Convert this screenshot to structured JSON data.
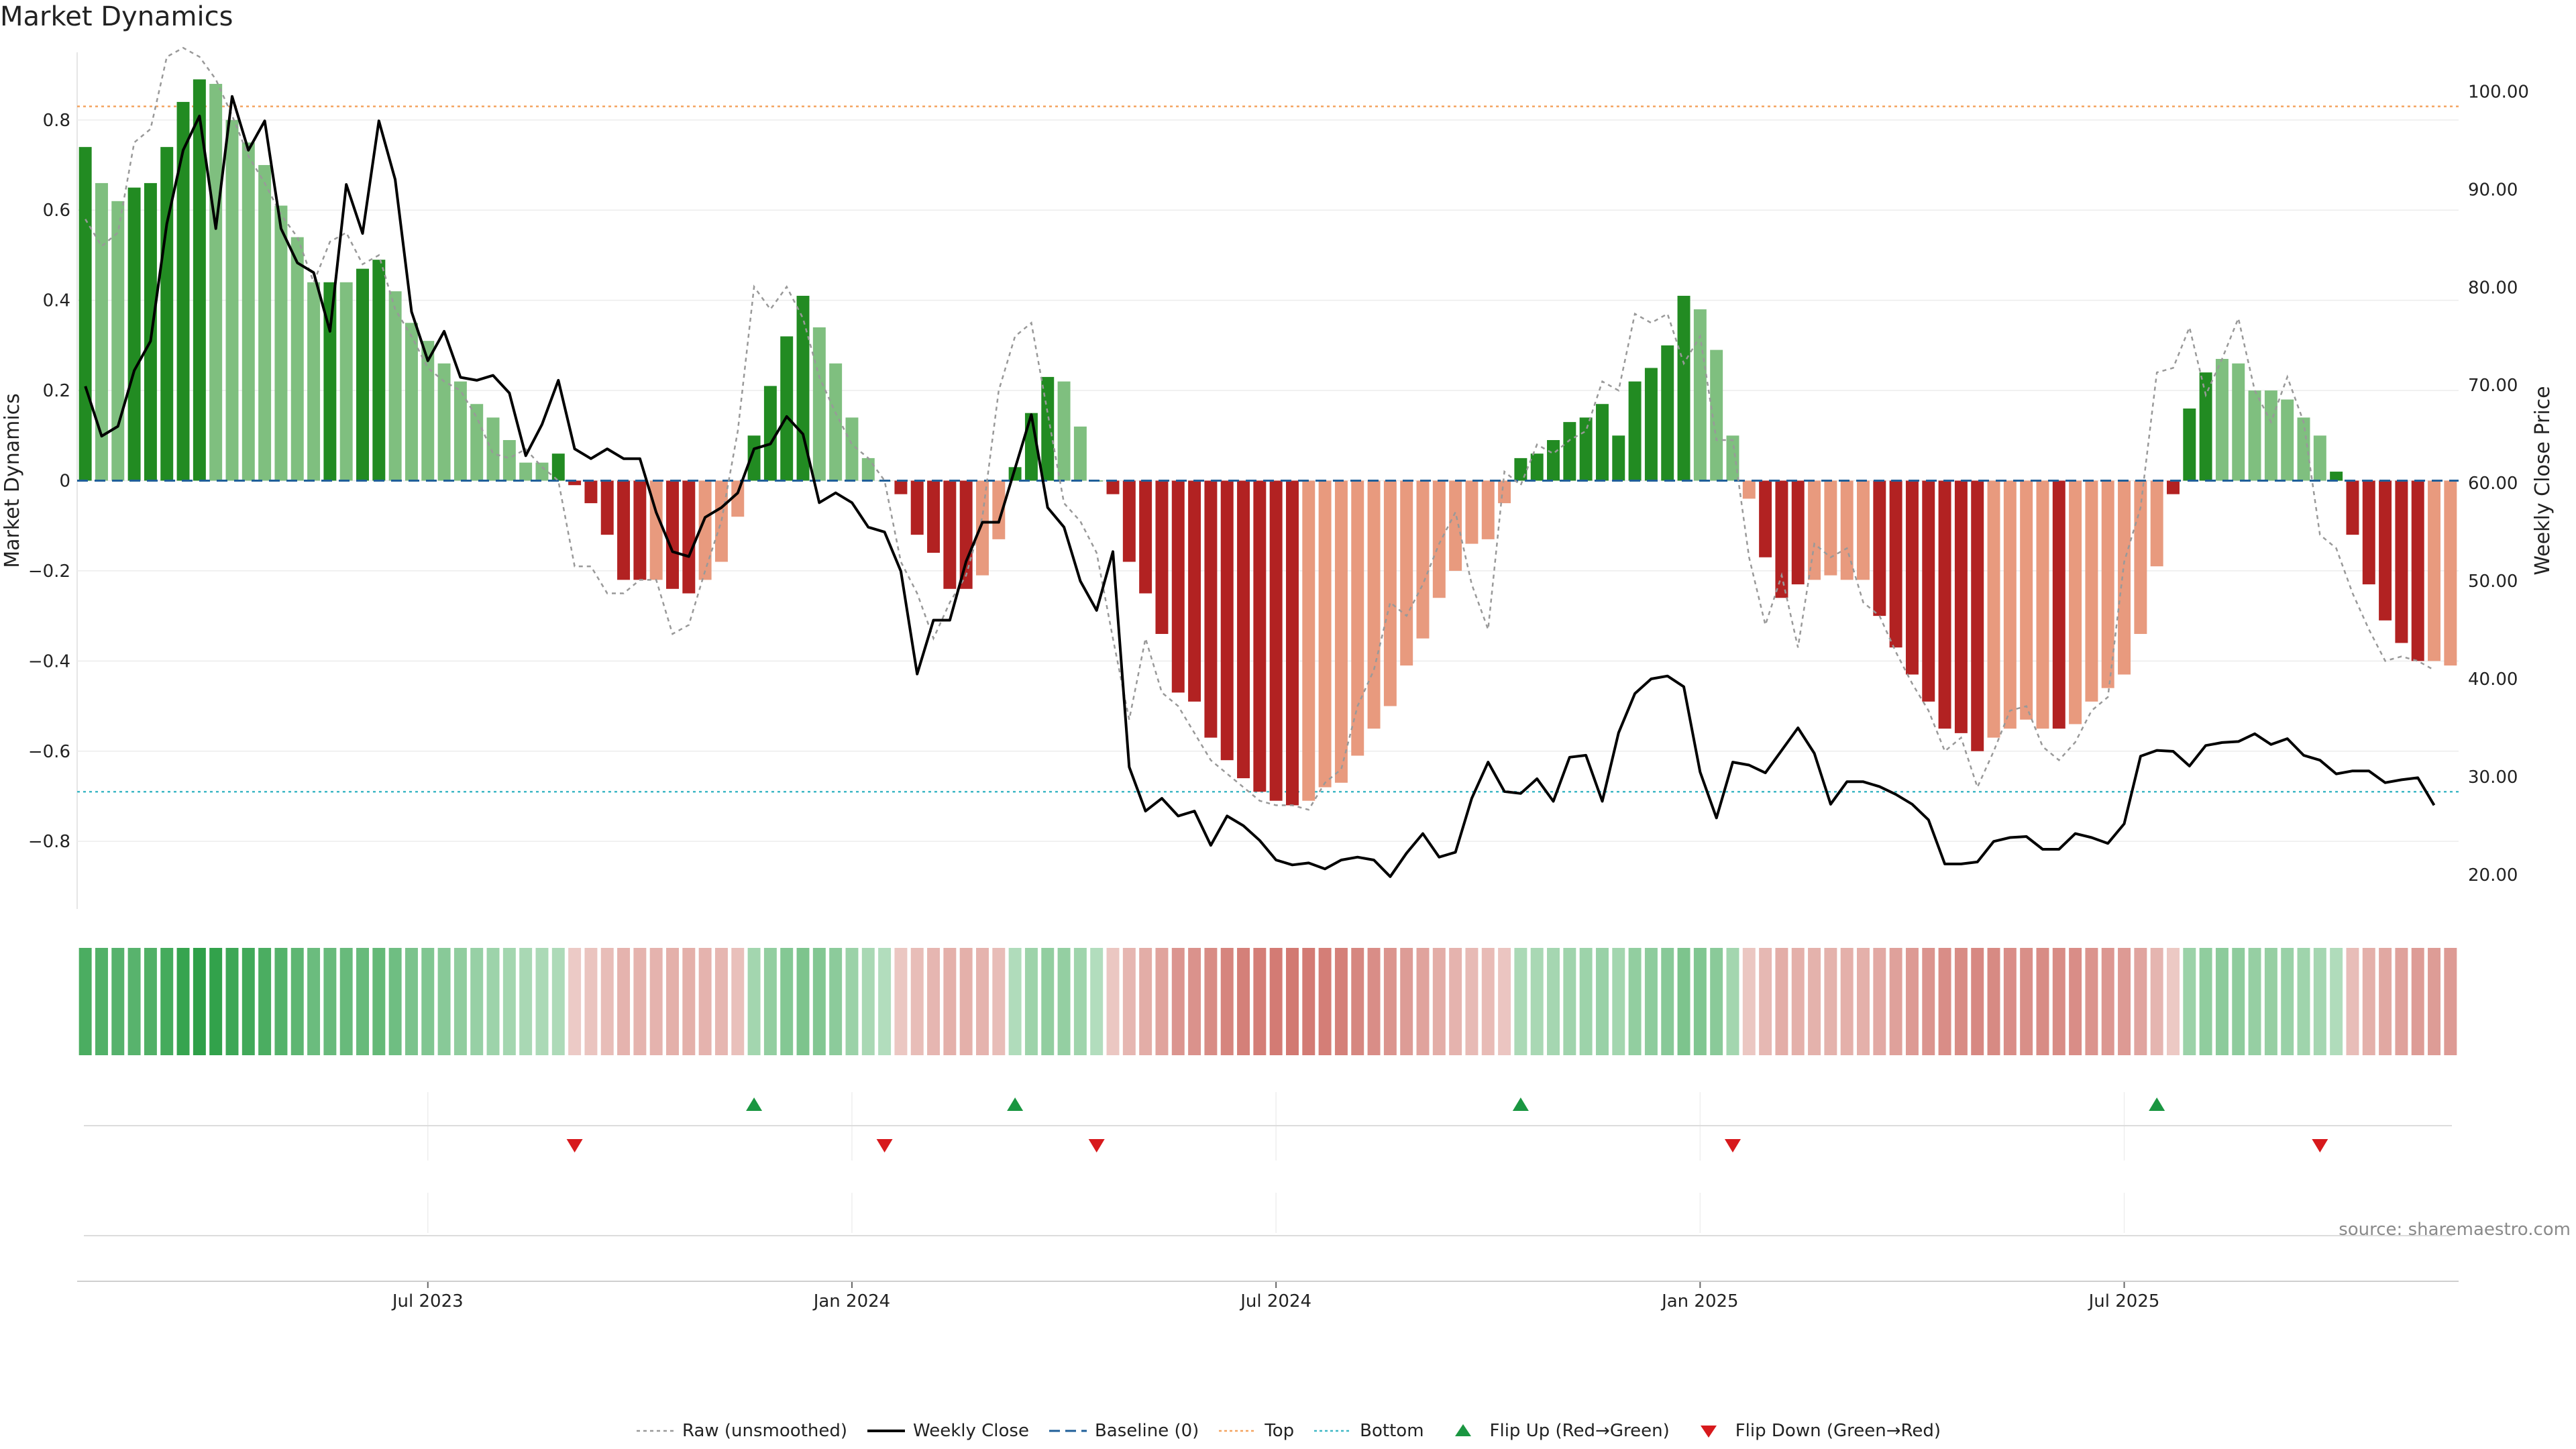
{
  "title": "Market Dynamics",
  "source": "source: sharemaestro.com",
  "chart_data": {
    "type": "bar",
    "title": "Market Dynamics",
    "ylabel": "Market Dynamics",
    "y2label": "Weekly Close Price",
    "ylim": [
      -0.95,
      0.95
    ],
    "y2lim": [
      16.5,
      104
    ],
    "yticks": [
      {
        "value": 0.8,
        "label": "0.8"
      },
      {
        "value": 0.6,
        "label": "0.6"
      },
      {
        "value": 0.4,
        "label": "0.4"
      },
      {
        "value": 0.2,
        "label": "0.2"
      },
      {
        "value": 0,
        "label": "0"
      },
      {
        "value": -0.2,
        "label": "−0.2"
      },
      {
        "value": -0.4,
        "label": "−0.4"
      },
      {
        "value": -0.6,
        "label": "−0.6"
      },
      {
        "value": -0.8,
        "label": "−0.8"
      }
    ],
    "y2ticks": [
      {
        "value": 100,
        "label": "100.00"
      },
      {
        "value": 90,
        "label": "90.00"
      },
      {
        "value": 80,
        "label": "80.00"
      },
      {
        "value": 70,
        "label": "70.00"
      },
      {
        "value": 60,
        "label": "60.00"
      },
      {
        "value": 50,
        "label": "50.00"
      },
      {
        "value": 40,
        "label": "40.00"
      },
      {
        "value": 30,
        "label": "30.00"
      },
      {
        "value": 20,
        "label": "20.00"
      }
    ],
    "xticks": [
      {
        "index": 21,
        "label": "Jul 2023"
      },
      {
        "index": 47,
        "label": "Jan 2024"
      },
      {
        "index": 73,
        "label": "Jul 2024"
      },
      {
        "index": 99,
        "label": "Jan 2025"
      },
      {
        "index": 125,
        "label": "Jul 2025"
      }
    ],
    "top_threshold": 0.83,
    "bottom_threshold": -0.69,
    "baseline": 0,
    "grid": true,
    "legend_position": "bottom",
    "colors": {
      "strong_up": "#228b22",
      "weak_up": "#7fbf7f",
      "strong_down": "#b22222",
      "weak_down": "#e89a7e",
      "raw": "#999999",
      "close": "#000000",
      "baseline": "#1f5f99",
      "top": "#f4a460",
      "bottom": "#3fb8c6",
      "flip_up": "#1a9641",
      "flip_down": "#d7191c"
    },
    "momentum": [
      0.74,
      0.66,
      0.62,
      0.65,
      0.66,
      0.74,
      0.84,
      0.89,
      0.88,
      0.8,
      0.75,
      0.7,
      0.61,
      0.54,
      0.44,
      0.44,
      0.44,
      0.47,
      0.49,
      0.42,
      0.35,
      0.31,
      0.26,
      0.22,
      0.17,
      0.14,
      0.09,
      0.04,
      0.04,
      0.06,
      -0.01,
      -0.05,
      -0.12,
      -0.22,
      -0.22,
      -0.22,
      -0.24,
      -0.25,
      -0.22,
      -0.18,
      -0.08,
      0.1,
      0.21,
      0.32,
      0.41,
      0.34,
      0.26,
      0.14,
      0.05,
      0.0,
      -0.03,
      -0.12,
      -0.16,
      -0.24,
      -0.24,
      -0.21,
      -0.13,
      0.03,
      0.15,
      0.23,
      0.22,
      0.12,
      0.0,
      -0.03,
      -0.18,
      -0.25,
      -0.34,
      -0.47,
      -0.49,
      -0.57,
      -0.62,
      -0.66,
      -0.69,
      -0.71,
      -0.72,
      -0.71,
      -0.68,
      -0.67,
      -0.61,
      -0.55,
      -0.5,
      -0.41,
      -0.35,
      -0.26,
      -0.2,
      -0.14,
      -0.13,
      -0.05,
      0.05,
      0.06,
      0.09,
      0.13,
      0.14,
      0.17,
      0.1,
      0.22,
      0.25,
      0.3,
      0.41,
      0.38,
      0.29,
      0.1,
      -0.04,
      -0.17,
      -0.26,
      -0.23,
      -0.22,
      -0.21,
      -0.22,
      -0.22,
      -0.3,
      -0.37,
      -0.43,
      -0.49,
      -0.55,
      -0.56,
      -0.6,
      -0.57,
      -0.55,
      -0.53,
      -0.55,
      -0.55,
      -0.54,
      -0.49,
      -0.46,
      -0.43,
      -0.34,
      -0.19,
      -0.03,
      0.16,
      0.24,
      0.27,
      0.26,
      0.2,
      0.2,
      0.18,
      0.14,
      0.1,
      0.02,
      -0.12,
      -0.23,
      -0.31,
      -0.36,
      -0.4,
      -0.4,
      -0.41
    ],
    "strength": [
      "s",
      "w",
      "w",
      "s",
      "s",
      "s",
      "s",
      "s",
      "w",
      "w",
      "w",
      "w",
      "w",
      "w",
      "w",
      "s",
      "w",
      "s",
      "s",
      "w",
      "w",
      "w",
      "w",
      "w",
      "w",
      "w",
      "w",
      "w",
      "w",
      "s",
      "s",
      "s",
      "s",
      "s",
      "s",
      "w",
      "s",
      "s",
      "w",
      "w",
      "w",
      "s",
      "s",
      "s",
      "s",
      "w",
      "w",
      "w",
      "w",
      "w",
      "s",
      "s",
      "s",
      "s",
      "s",
      "w",
      "w",
      "s",
      "s",
      "s",
      "w",
      "w",
      "s",
      "s",
      "s",
      "s",
      "s",
      "s",
      "s",
      "s",
      "s",
      "s",
      "s",
      "s",
      "s",
      "w",
      "w",
      "w",
      "w",
      "w",
      "w",
      "w",
      "w",
      "w",
      "w",
      "w",
      "w",
      "w",
      "s",
      "s",
      "s",
      "s",
      "s",
      "s",
      "s",
      "s",
      "s",
      "s",
      "s",
      "w",
      "w",
      "w",
      "w",
      "s",
      "s",
      "s",
      "w",
      "w",
      "w",
      "w",
      "s",
      "s",
      "s",
      "s",
      "s",
      "s",
      "s",
      "w",
      "w",
      "w",
      "w",
      "s",
      "w",
      "w",
      "w",
      "w",
      "w",
      "w",
      "s",
      "s",
      "s",
      "w",
      "w",
      "w",
      "w",
      "w",
      "w",
      "w",
      "s",
      "s",
      "s",
      "s",
      "s",
      "s",
      "w"
    ],
    "raw": [
      0.58,
      0.52,
      0.55,
      0.75,
      0.78,
      0.94,
      0.96,
      0.94,
      0.89,
      0.81,
      0.72,
      0.66,
      0.59,
      0.54,
      0.44,
      0.53,
      0.55,
      0.48,
      0.5,
      0.38,
      0.32,
      0.25,
      0.22,
      0.2,
      0.14,
      0.06,
      0.05,
      0.07,
      0.03,
      0.0,
      -0.19,
      -0.19,
      -0.25,
      -0.25,
      -0.22,
      -0.22,
      -0.34,
      -0.32,
      -0.2,
      -0.09,
      0.11,
      0.43,
      0.38,
      0.43,
      0.36,
      0.23,
      0.15,
      0.08,
      0.05,
      0.0,
      -0.18,
      -0.25,
      -0.35,
      -0.27,
      -0.21,
      -0.08,
      0.2,
      0.32,
      0.35,
      0.15,
      -0.05,
      -0.09,
      -0.16,
      -0.35,
      -0.53,
      -0.35,
      -0.47,
      -0.5,
      -0.56,
      -0.62,
      -0.65,
      -0.68,
      -0.71,
      -0.72,
      -0.72,
      -0.73,
      -0.67,
      -0.64,
      -0.5,
      -0.42,
      -0.27,
      -0.3,
      -0.23,
      -0.14,
      -0.07,
      -0.23,
      -0.33,
      0.02,
      -0.01,
      0.08,
      0.06,
      0.09,
      0.11,
      0.22,
      0.2,
      0.37,
      0.35,
      0.37,
      0.26,
      0.32,
      0.09,
      0.09,
      -0.17,
      -0.32,
      -0.21,
      -0.37,
      -0.14,
      -0.17,
      -0.15,
      -0.27,
      -0.3,
      -0.38,
      -0.45,
      -0.51,
      -0.6,
      -0.57,
      -0.68,
      -0.6,
      -0.51,
      -0.5,
      -0.59,
      -0.62,
      -0.58,
      -0.51,
      -0.48,
      -0.18,
      -0.06,
      0.24,
      0.25,
      0.34,
      0.19,
      0.27,
      0.36,
      0.2,
      0.13,
      0.23,
      0.13,
      -0.12,
      -0.15,
      -0.25,
      -0.33,
      -0.4,
      -0.39,
      -0.4,
      -0.42
    ],
    "close": [
      69.9,
      64.8,
      65.8,
      71.5,
      74.5,
      86.5,
      94.0,
      97.5,
      86.0,
      99.5,
      94.0,
      97.0,
      86.0,
      82.5,
      81.5,
      75.5,
      90.5,
      85.5,
      97.0,
      91.0,
      77.5,
      72.5,
      75.5,
      70.8,
      70.5,
      71.0,
      69.2,
      62.8,
      66.0,
      70.5,
      63.5,
      62.5,
      63.5,
      62.5,
      62.5,
      57.0,
      53.0,
      52.5,
      56.5,
      57.5,
      59.0,
      63.5,
      64.0,
      66.8,
      65.0,
      58.0,
      59.0,
      58.0,
      55.5,
      55.0,
      51.0,
      40.5,
      46.0,
      46.0,
      52.0,
      56.0,
      56.0,
      61.5,
      67.0,
      57.5,
      55.5,
      50.0,
      47.0,
      53.0,
      31.0,
      26.5,
      27.8,
      26.0,
      26.5,
      23.0,
      26.0,
      25.0,
      23.5,
      21.5,
      21.0,
      21.2,
      20.6,
      21.5,
      21.8,
      21.5,
      19.8,
      22.2,
      24.2,
      21.8,
      22.3,
      27.8,
      31.5,
      28.5,
      28.3,
      29.8,
      27.5,
      32.0,
      32.2,
      27.5,
      34.5,
      38.5,
      40.0,
      40.3,
      39.2,
      30.5,
      25.8,
      31.5,
      31.2,
      30.4,
      32.7,
      35.0,
      32.4,
      27.2,
      29.5,
      29.5,
      29.0,
      28.2,
      27.2,
      25.6,
      21.1,
      21.1,
      21.3,
      23.4,
      23.8,
      23.9,
      22.6,
      22.6,
      24.2,
      23.8,
      23.2,
      25.2,
      32.1,
      32.7,
      32.6,
      31.1,
      33.2,
      33.5,
      33.6,
      34.4,
      33.3,
      33.9,
      32.2,
      31.7,
      30.3,
      30.6,
      30.6,
      29.4,
      29.7,
      29.9,
      27.1
    ],
    "heat_strip": [
      0.55,
      0.51,
      0.49,
      0.48,
      0.52,
      0.58,
      0.66,
      0.7,
      0.68,
      0.62,
      0.6,
      0.55,
      0.5,
      0.45,
      0.38,
      0.4,
      0.4,
      0.4,
      0.42,
      0.36,
      0.3,
      0.27,
      0.23,
      0.19,
      0.15,
      0.12,
      0.09,
      0.06,
      0.05,
      0.04,
      -0.02,
      -0.06,
      -0.1,
      -0.16,
      -0.16,
      -0.16,
      -0.18,
      -0.18,
      -0.16,
      -0.14,
      -0.08,
      0.09,
      0.18,
      0.25,
      0.29,
      0.26,
      0.21,
      0.13,
      0.06,
      0.01,
      -0.04,
      -0.1,
      -0.14,
      -0.18,
      -0.18,
      -0.16,
      -0.1,
      0.02,
      0.12,
      0.18,
      0.17,
      0.11,
      0.01,
      -0.04,
      -0.14,
      -0.2,
      -0.26,
      -0.34,
      -0.36,
      -0.4,
      -0.44,
      -0.47,
      -0.48,
      -0.5,
      -0.51,
      -0.5,
      -0.48,
      -0.47,
      -0.43,
      -0.39,
      -0.35,
      -0.3,
      -0.26,
      -0.2,
      -0.16,
      -0.12,
      -0.11,
      -0.05,
      0.05,
      0.06,
      0.08,
      0.11,
      0.12,
      0.14,
      0.09,
      0.18,
      0.2,
      0.23,
      0.29,
      0.27,
      0.22,
      0.09,
      -0.04,
      -0.13,
      -0.2,
      -0.18,
      -0.17,
      -0.17,
      -0.18,
      -0.18,
      -0.22,
      -0.27,
      -0.31,
      -0.35,
      -0.39,
      -0.4,
      -0.42,
      -0.41,
      -0.39,
      -0.38,
      -0.4,
      -0.4,
      -0.39,
      -0.35,
      -0.33,
      -0.31,
      -0.25,
      -0.15,
      -0.03,
      0.13,
      0.19,
      0.21,
      0.2,
      0.16,
      0.16,
      0.14,
      0.11,
      0.08,
      0.02,
      -0.1,
      -0.18,
      -0.23,
      -0.27,
      -0.3,
      -0.3,
      -0.31
    ],
    "flip_up": [
      41,
      57,
      88,
      127
    ],
    "flip_down": [
      30,
      49,
      62,
      101,
      137
    ],
    "legend": [
      {
        "name": "Raw (unsmoothed)",
        "key": "raw"
      },
      {
        "name": "Weekly Close",
        "key": "close"
      },
      {
        "name": "Baseline (0)",
        "key": "baseline"
      },
      {
        "name": "Top",
        "key": "top"
      },
      {
        "name": "Bottom",
        "key": "bottom"
      },
      {
        "name": "Flip Up (Red→Green)",
        "key": "flip_up"
      },
      {
        "name": "Flip Down (Green→Red)",
        "key": "flip_down"
      }
    ]
  }
}
